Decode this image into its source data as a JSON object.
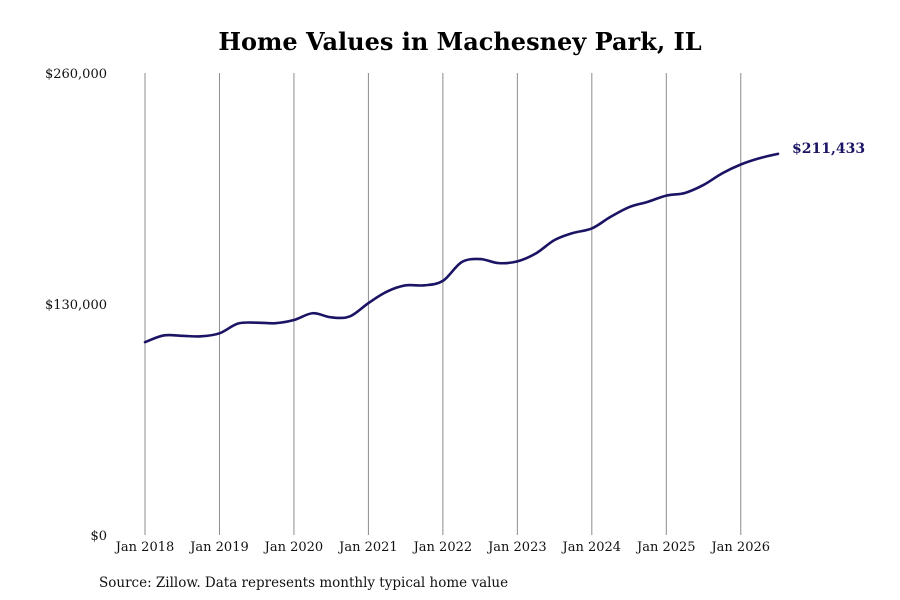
{
  "chart_data": {
    "type": "line",
    "title": "Home Values in Machesney Park, IL",
    "xlabel": "",
    "ylabel": "",
    "source": "Source: Zillow. Data represents monthly typical home value",
    "y_ticks": [
      {
        "value": 0,
        "label": "$0"
      },
      {
        "value": 130000,
        "label": "$130,000"
      },
      {
        "value": 260000,
        "label": "$260,000"
      }
    ],
    "ylim": [
      0,
      260000
    ],
    "x_range": [
      "2018-01",
      "2026-07"
    ],
    "x_ticks": [
      {
        "date": "2018-01",
        "label": "Jan 2018"
      },
      {
        "date": "2019-01",
        "label": "Jan 2019"
      },
      {
        "date": "2020-01",
        "label": "Jan 2020"
      },
      {
        "date": "2021-01",
        "label": "Jan 2021"
      },
      {
        "date": "2022-01",
        "label": "Jan 2022"
      },
      {
        "date": "2023-01",
        "label": "Jan 2023"
      },
      {
        "date": "2024-01",
        "label": "Jan 2024"
      },
      {
        "date": "2025-01",
        "label": "Jan 2025"
      },
      {
        "date": "2026-01",
        "label": "Jan 2026"
      }
    ],
    "vertical_gridlines": true,
    "line_color": "#1b1464",
    "end_label": "$211,433",
    "series": [
      {
        "points": [
          [
            "2018-01",
            108500
          ],
          [
            "2018-04",
            112300
          ],
          [
            "2018-07",
            112100
          ],
          [
            "2018-10",
            111800
          ],
          [
            "2019-01",
            113500
          ],
          [
            "2019-04",
            119000
          ],
          [
            "2019-07",
            119500
          ],
          [
            "2019-10",
            119200
          ],
          [
            "2020-01",
            121000
          ],
          [
            "2020-04",
            124800
          ],
          [
            "2020-07",
            122500
          ],
          [
            "2020-10",
            123000
          ],
          [
            "2021-01",
            130500
          ],
          [
            "2021-04",
            137000
          ],
          [
            "2021-07",
            140500
          ],
          [
            "2021-10",
            140500
          ],
          [
            "2022-01",
            143000
          ],
          [
            "2022-04",
            153500
          ],
          [
            "2022-07",
            155300
          ],
          [
            "2022-10",
            153000
          ],
          [
            "2023-01",
            154000
          ],
          [
            "2023-04",
            158500
          ],
          [
            "2023-07",
            166000
          ],
          [
            "2023-10",
            170000
          ],
          [
            "2024-01",
            172500
          ],
          [
            "2024-04",
            179000
          ],
          [
            "2024-07",
            184500
          ],
          [
            "2024-10",
            187500
          ],
          [
            "2025-01",
            191000
          ],
          [
            "2025-04",
            192500
          ],
          [
            "2025-07",
            197000
          ],
          [
            "2025-10",
            203500
          ],
          [
            "2026-01",
            208500
          ],
          [
            "2026-04",
            212000
          ],
          [
            "2026-07",
            214500
          ]
        ]
      }
    ]
  }
}
